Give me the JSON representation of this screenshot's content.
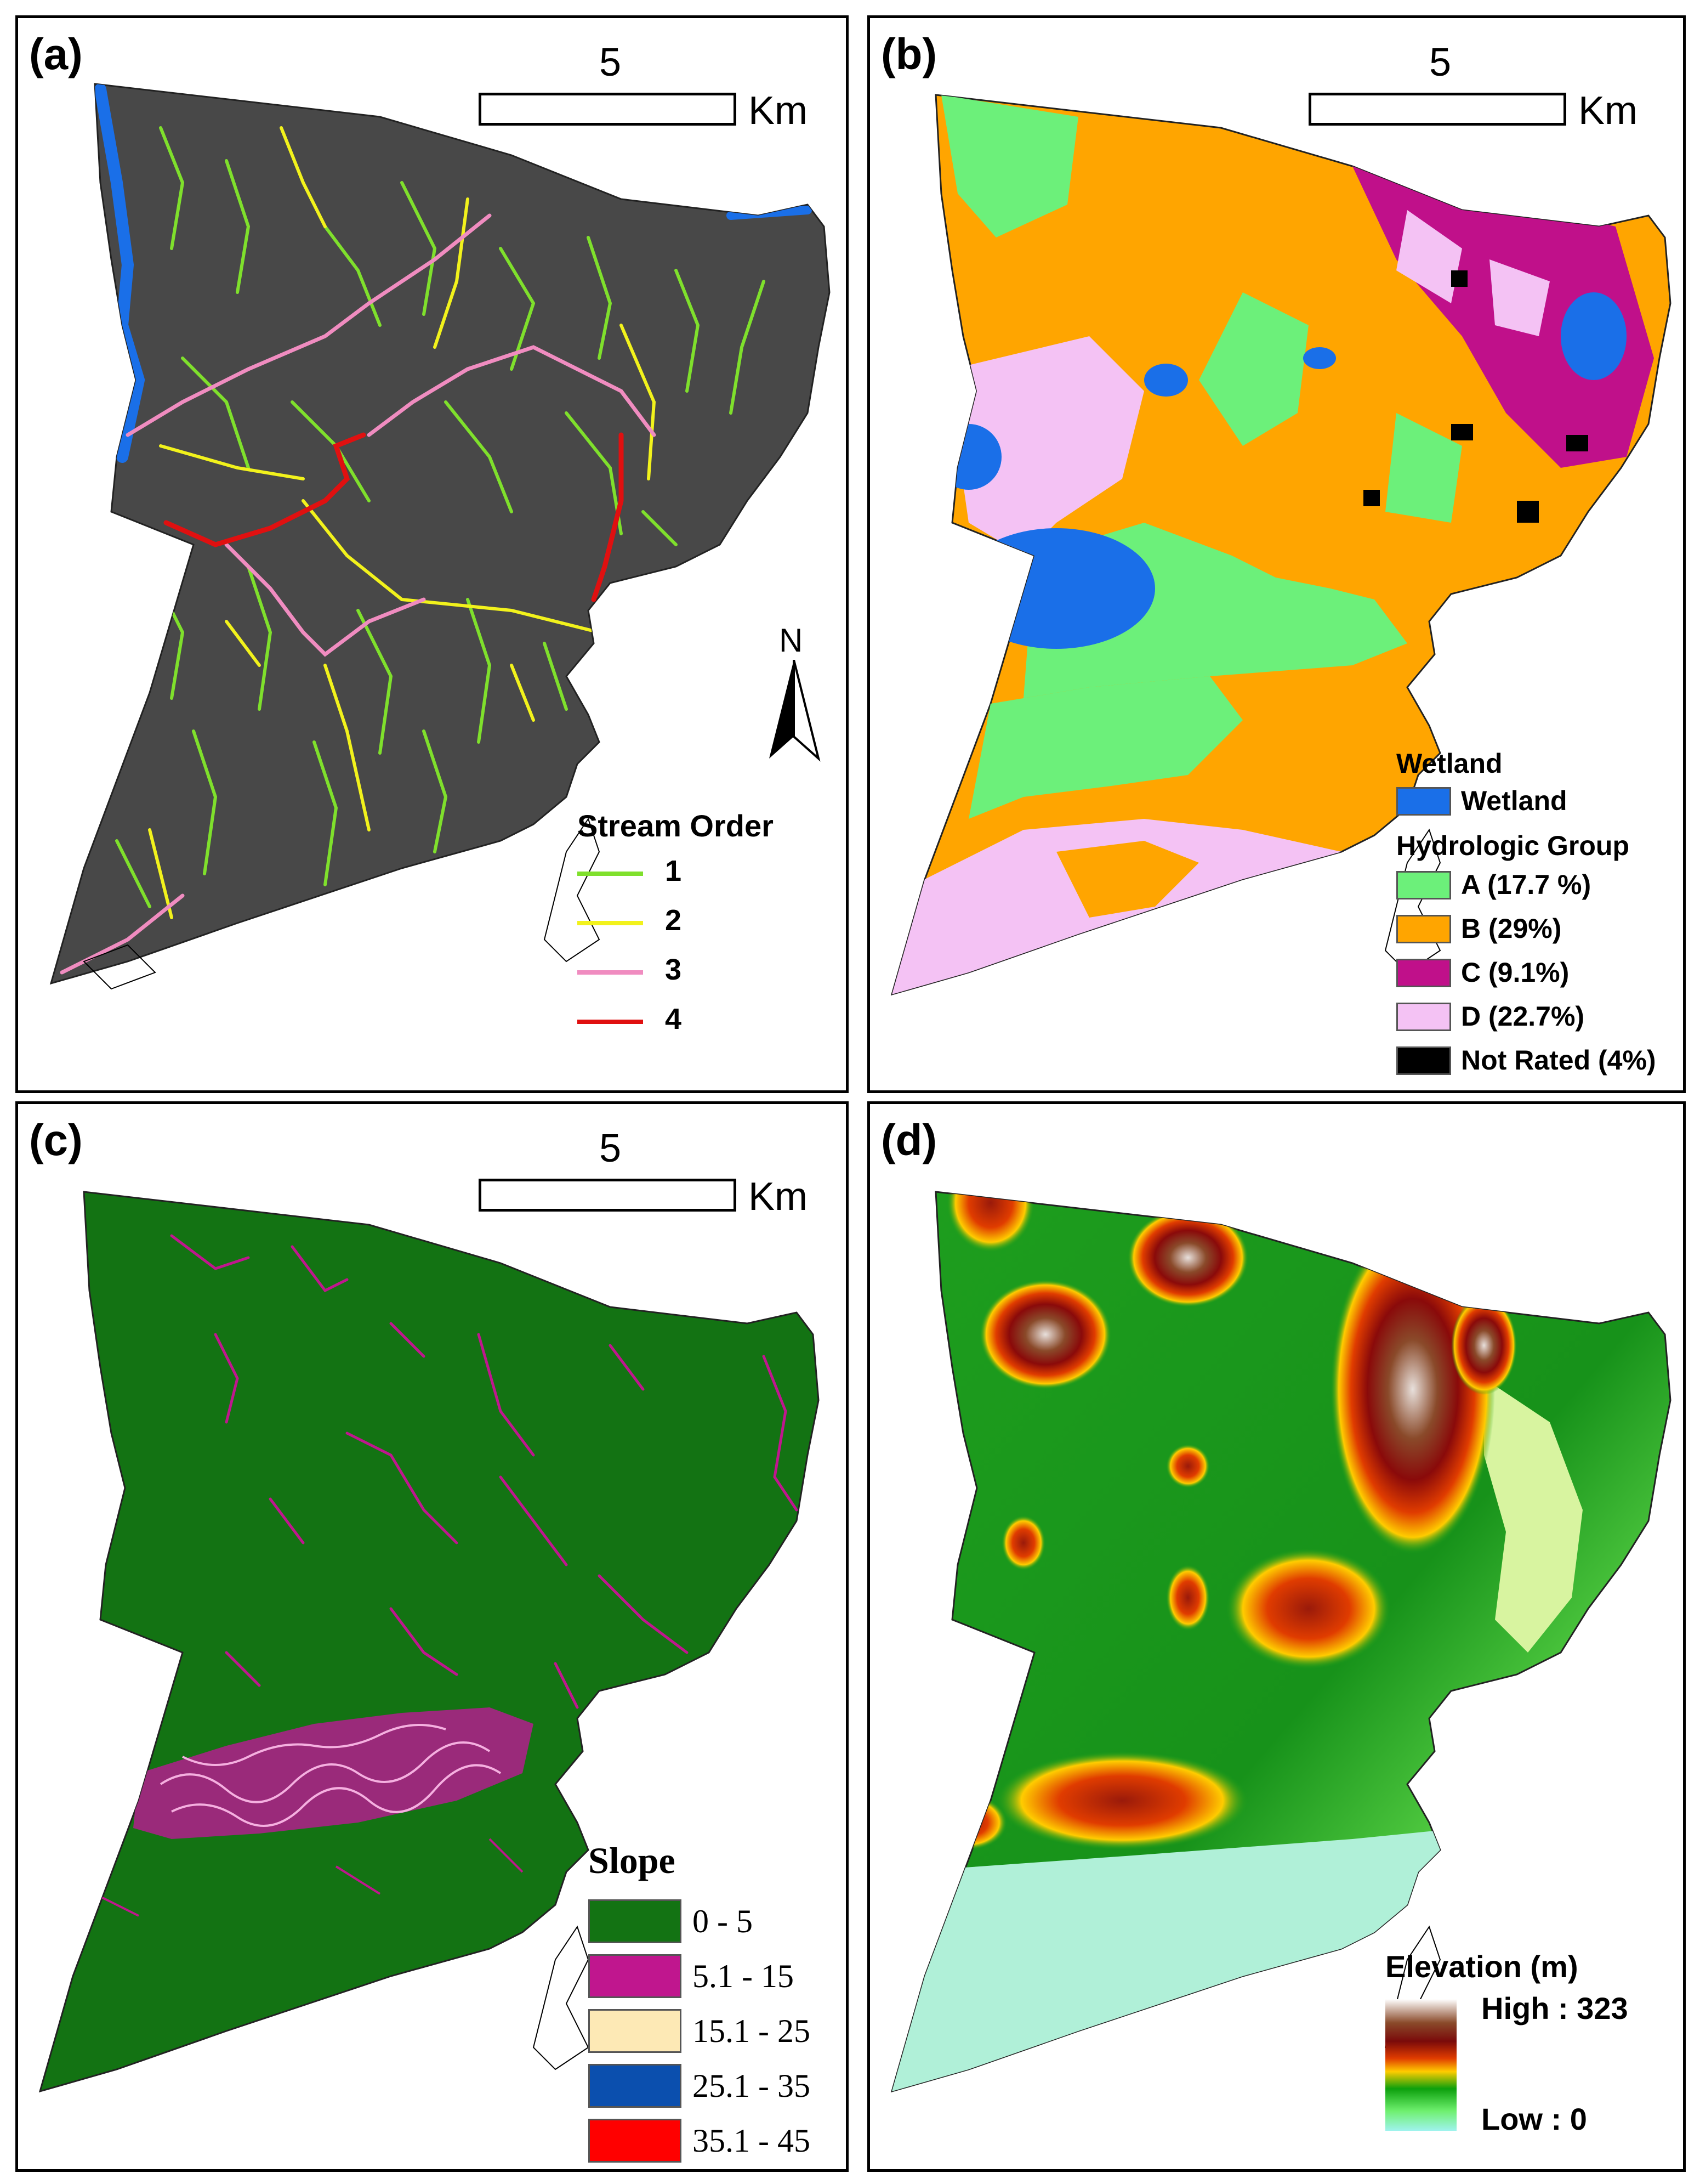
{
  "scale_bar": {
    "value": "5",
    "unit": "Km"
  },
  "panels": {
    "a": {
      "label": "(a)",
      "north": "N",
      "legend": {
        "title": "Stream Order",
        "items": [
          {
            "label": "1",
            "color": "#7fe02c"
          },
          {
            "label": "2",
            "color": "#f2f21c"
          },
          {
            "label": "3",
            "color": "#f08cc0"
          },
          {
            "label": "4",
            "color": "#e01010"
          }
        ]
      },
      "colors": {
        "background": "#484848",
        "wetland": "#1a6fe8"
      }
    },
    "b": {
      "label": "(b)",
      "legend": {
        "title1": "Wetland",
        "wetland": {
          "label": "Wetland",
          "color": "#1a6fe8"
        },
        "title2": "Hydrologic Group",
        "items": [
          {
            "label": "A (17.7 %)",
            "color": "#6cf07a"
          },
          {
            "label": "B (29%)",
            "color": "#ffa500"
          },
          {
            "label": "C (9.1%)",
            "color": "#c0108a"
          },
          {
            "label": "D (22.7%)",
            "color": "#f4c2f4"
          },
          {
            "label": "Not Rated (4%)",
            "color": "#000000"
          }
        ]
      }
    },
    "c": {
      "label": "(c)",
      "legend": {
        "title": "Slope",
        "items": [
          {
            "label": "0 - 5",
            "color": "#137313"
          },
          {
            "label": "5.1 - 15",
            "color": "#c0168e"
          },
          {
            "label": "15.1 - 25",
            "color": "#fde9b5"
          },
          {
            "label": "25.1 - 35",
            "color": "#0b4fae"
          },
          {
            "label": "35.1 - 45",
            "color": "#ff0000"
          }
        ]
      }
    },
    "d": {
      "label": "(d)",
      "legend": {
        "title": "Elevation (m)",
        "high": "High : 323",
        "low": "Low : 0",
        "ramp": [
          "#ffffff",
          "#8a4a2a",
          "#7a0a0a",
          "#e03c00",
          "#ffcc00",
          "#0ca00c",
          "#6ff06f",
          "#9ff3ee"
        ]
      }
    }
  }
}
